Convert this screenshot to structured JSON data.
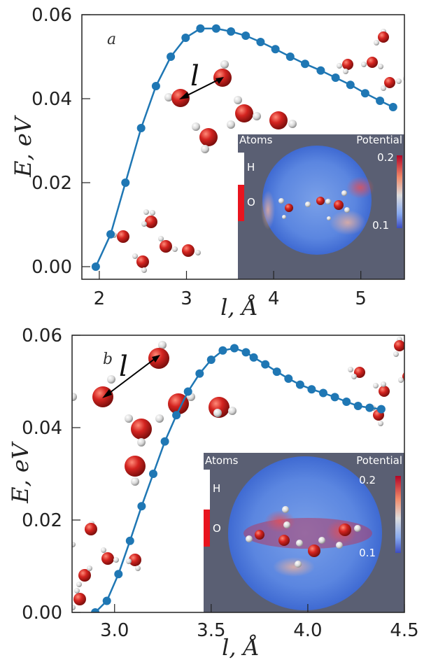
{
  "colors": {
    "curve": "#1f77b4",
    "oxygen": "#d42420",
    "hydrogen": "#dcdcdc",
    "inset_bg": "#5a5f73"
  },
  "chart_data": [
    {
      "panel": "a",
      "type": "line",
      "xlabel": "l,  Å",
      "ylabel": "E, eV",
      "xlim": [
        1.8,
        5.5
      ],
      "ylim": [
        -0.003,
        0.06
      ],
      "x_ticks": [
        "2",
        "3",
        "4",
        "5"
      ],
      "y_ticks": [
        "0.00",
        "0.02",
        "0.04",
        "0.06"
      ],
      "x": [
        1.96,
        2.13,
        2.3,
        2.48,
        2.65,
        2.82,
        2.99,
        3.16,
        3.34,
        3.51,
        3.68,
        3.85,
        4.02,
        4.19,
        4.36,
        4.54,
        4.71,
        4.88,
        5.05,
        5.22,
        5.37
      ],
      "y": [
        0.0,
        0.0077,
        0.02,
        0.033,
        0.043,
        0.05,
        0.0545,
        0.0567,
        0.0567,
        0.056,
        0.055,
        0.0535,
        0.0518,
        0.05,
        0.0483,
        0.0467,
        0.045,
        0.0433,
        0.0413,
        0.0395,
        0.038
      ],
      "annotation": "l",
      "inset": {
        "atoms_label": "Atoms",
        "potential_label": "Potential",
        "h_label": "H",
        "o_label": "O",
        "cb_max": "0.2",
        "cb_min": "0.1"
      }
    },
    {
      "panel": "b",
      "type": "line",
      "xlabel": "l,  Å",
      "ylabel": "E, eV",
      "xlim": [
        2.78,
        4.5
      ],
      "ylim": [
        0.0,
        0.06
      ],
      "x_ticks": [
        "3.0",
        "3.5",
        "4.0",
        "4.5"
      ],
      "y_ticks": [
        "0.00",
        "0.02",
        "0.04",
        "0.06"
      ],
      "x": [
        2.9,
        2.96,
        3.02,
        3.08,
        3.14,
        3.2,
        3.26,
        3.32,
        3.38,
        3.44,
        3.5,
        3.56,
        3.62,
        3.68,
        3.72,
        3.78,
        3.84,
        3.9,
        3.96,
        4.02,
        4.08,
        4.14,
        4.2,
        4.26,
        4.32,
        4.38
      ],
      "y": [
        0.0,
        0.0025,
        0.0083,
        0.0155,
        0.023,
        0.03,
        0.037,
        0.0427,
        0.0478,
        0.0517,
        0.0547,
        0.0567,
        0.0572,
        0.0563,
        0.0552,
        0.0537,
        0.0521,
        0.0506,
        0.0493,
        0.0483,
        0.0475,
        0.0466,
        0.0456,
        0.0447,
        0.0443,
        0.044
      ],
      "annotation": "l",
      "inset": {
        "atoms_label": "Atoms",
        "potential_label": "Potential",
        "h_label": "H",
        "o_label": "O",
        "cb_max": "0.2",
        "cb_min": "0.1"
      }
    }
  ]
}
